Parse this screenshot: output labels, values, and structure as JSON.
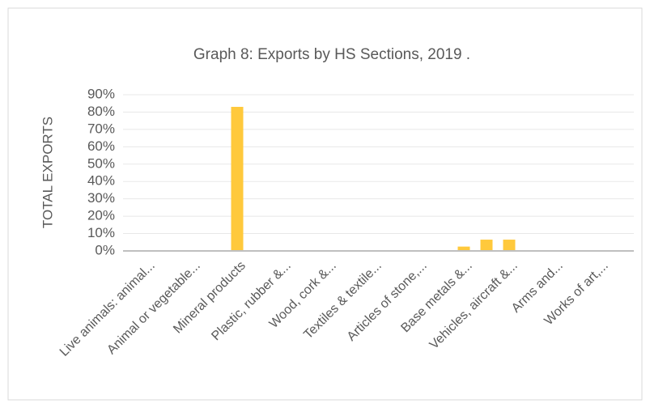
{
  "chart_data": {
    "type": "bar",
    "title": "Graph 8: Exports by HS Sections, 2019 .",
    "y_label": "TOTAL EXPORTS",
    "categories": [
      "Live animals: animal...",
      null,
      "Animal or vegetable...",
      null,
      "Mineral products",
      null,
      "Plastic, rubber &...",
      null,
      "Wood, cork &...",
      null,
      "Textiles & textile...",
      null,
      "Articles of stone,...",
      null,
      "Base metals &...",
      null,
      "Vehicles, aircraft &...",
      null,
      "Arms and...",
      null,
      "Works of art,..."
    ],
    "values": [
      0,
      0,
      0,
      0,
      83,
      0,
      0,
      0,
      0,
      0,
      0,
      0,
      0,
      0,
      2.5,
      6.5,
      6.5,
      0,
      0,
      0,
      0
    ],
    "color": "#ffc93c",
    "ylim": [
      0,
      90
    ],
    "yticks": [
      {
        "value": 0,
        "label": "0%"
      },
      {
        "value": 10,
        "label": "10%"
      },
      {
        "value": 20,
        "label": "20%"
      },
      {
        "value": 30,
        "label": "30%"
      },
      {
        "value": 40,
        "label": "40%"
      },
      {
        "value": 50,
        "label": "50%"
      },
      {
        "value": 60,
        "label": "60%"
      },
      {
        "value": 70,
        "label": "70%"
      },
      {
        "value": 80,
        "label": "80%"
      },
      {
        "value": 90,
        "label": "90%"
      }
    ],
    "grid": true
  }
}
